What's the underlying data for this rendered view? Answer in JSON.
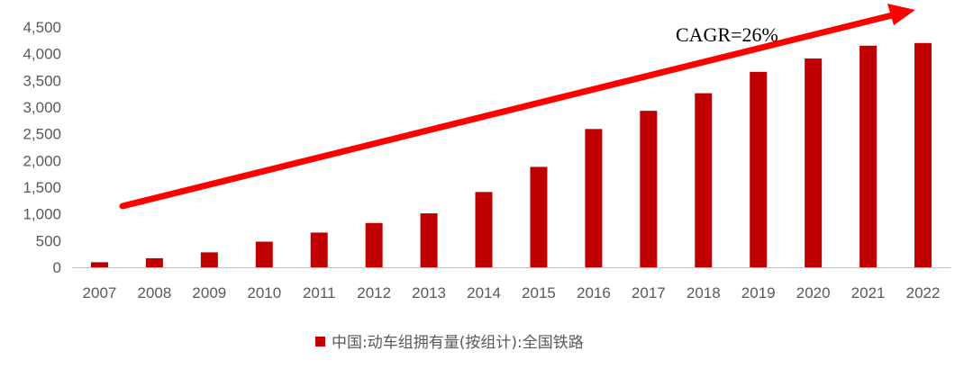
{
  "chart_data": {
    "type": "bar",
    "categories": [
      "2007",
      "2008",
      "2009",
      "2010",
      "2011",
      "2012",
      "2013",
      "2014",
      "2015",
      "2016",
      "2017",
      "2018",
      "2019",
      "2020",
      "2021",
      "2022"
    ],
    "series": [
      {
        "name": "中国:动车组拥有量(按组计):全国铁路",
        "values": [
          95,
          170,
          280,
          480,
          650,
          830,
          1010,
          1410,
          1880,
          2590,
          2930,
          3260,
          3660,
          3910,
          4150,
          4200
        ]
      }
    ],
    "ylim": [
      0,
      4500
    ],
    "yticks": [
      "0",
      "500",
      "1,000",
      "1,500",
      "2,000",
      "2,500",
      "3,000",
      "3,500",
      "4,000",
      "4,500"
    ],
    "grid": false,
    "legend_position": "bottom",
    "annotation": "CAGR=26%",
    "colors": {
      "bar": "#C00000",
      "arrow": "#FF0000",
      "axis": "#BFBFBF",
      "text": "#595959"
    }
  }
}
